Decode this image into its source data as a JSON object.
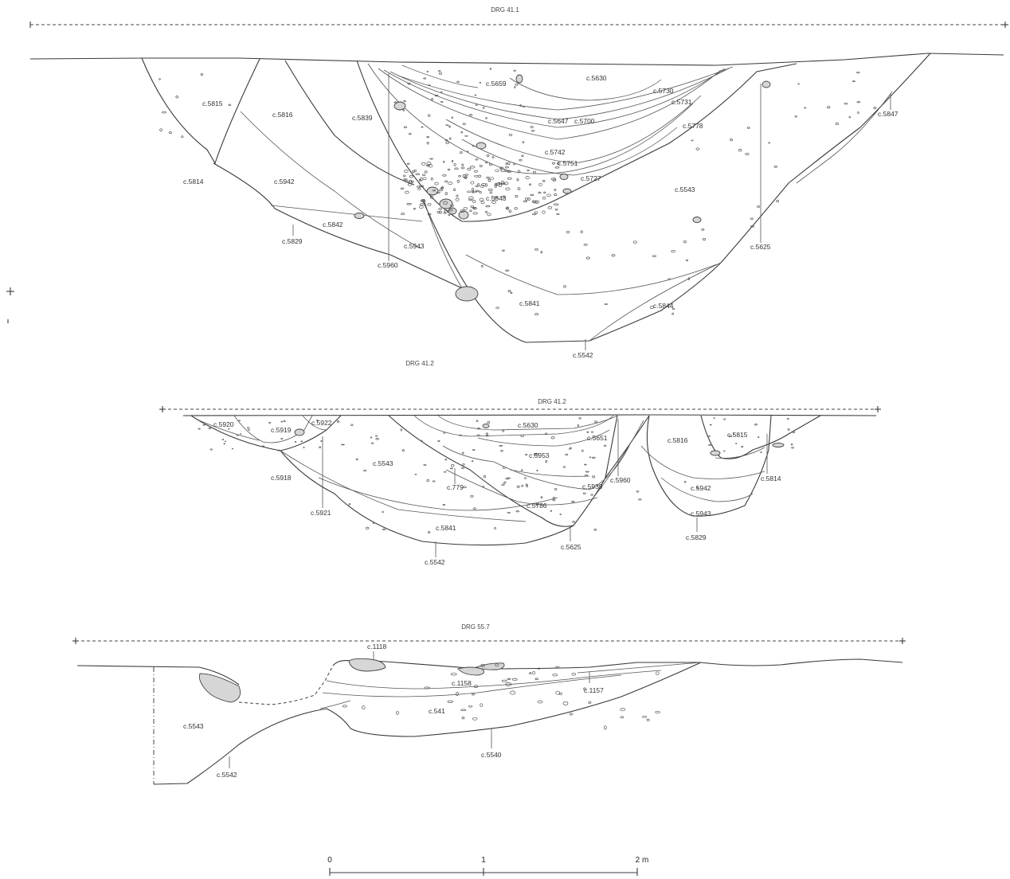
{
  "sections": [
    {
      "title": "DRG 41.1",
      "labels": [
        "c.5815",
        "c.5816",
        "c.5839",
        "c.5659",
        "c.5630",
        "c.5730",
        "c.5731",
        "c.5647",
        "c.5700",
        "c.5778",
        "c.5847",
        "c.5742",
        "c.5751",
        "c.5727",
        "c.5814",
        "c.5942",
        "c.5843",
        "c.5543",
        "c.5842",
        "c.5829",
        "c.5943",
        "c.5960",
        "c.5625",
        "c.5841",
        "c.5844",
        "c.5542"
      ],
      "overflow_label": "DRG 41.2"
    },
    {
      "title": "DRG 41.2",
      "labels": [
        "c.5920",
        "c.5919",
        "c.5922",
        "c.5630",
        "c.5651",
        "c.5816",
        "c.5815",
        "c.5543",
        "c.5953",
        "c.5918",
        "c.779",
        "c.5939",
        "c.5960",
        "c.5814",
        "c.5921",
        "c.5786",
        "c.5942",
        "c.5943",
        "c.5841",
        "c.5625",
        "c.5829",
        "c.5542"
      ]
    },
    {
      "title": "DRG 55.7",
      "labels": [
        "c.1118",
        "c.1158",
        "c.1157",
        "c.541",
        "c.5543",
        "c.5540",
        "c.5542"
      ]
    }
  ],
  "scale_bar": {
    "ticks": [
      "0",
      "1",
      "2 m"
    ]
  },
  "colors": {
    "line": "#3a3a3a",
    "stone_fill": "#d6d6d6",
    "background": "#ffffff"
  }
}
